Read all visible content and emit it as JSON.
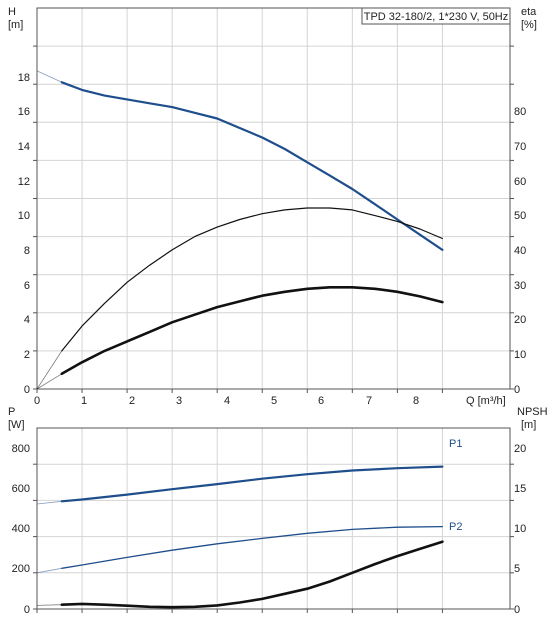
{
  "chart_data": [
    {
      "type": "line",
      "title": "TPD 32-180/2, 1*230 V, 50Hz",
      "xlabel": "Q [m³/h]",
      "ylabel_left": [
        "H",
        "[m]"
      ],
      "ylabel_right": [
        "eta",
        "[%]"
      ],
      "xlim": [
        0,
        10.5
      ],
      "ylim_left": [
        0,
        20
      ],
      "ylim_right": [
        0,
        100
      ],
      "x_ticks": [
        "0",
        "1",
        "2",
        "3",
        "4",
        "5",
        "6",
        "7",
        "8",
        "Q [m³/h]"
      ],
      "y_ticks_left": [
        "0",
        "2",
        "4",
        "6",
        "8",
        "10",
        "12",
        "14",
        "16",
        "18"
      ],
      "y_ticks_right": [
        "0",
        "10",
        "20",
        "30",
        "40",
        "50",
        "60",
        "70",
        "80"
      ],
      "grid": true,
      "series": [
        {
          "key": "H",
          "axis": "left",
          "color": "#1f4e8c",
          "extrapolated": [
            [
              0,
              16.7
            ],
            [
              0.55,
              16.1
            ]
          ],
          "points": [
            [
              0.55,
              16.1
            ],
            [
              1,
              15.7
            ],
            [
              1.5,
              15.4
            ],
            [
              2,
              15.2
            ],
            [
              2.5,
              15.0
            ],
            [
              3,
              14.8
            ],
            [
              3.5,
              14.5
            ],
            [
              4,
              14.2
            ],
            [
              4.5,
              13.7
            ],
            [
              5,
              13.2
            ],
            [
              5.5,
              12.6
            ],
            [
              6,
              11.9
            ],
            [
              6.5,
              11.2
            ],
            [
              7,
              10.5
            ],
            [
              7.5,
              9.7
            ],
            [
              8,
              8.9
            ],
            [
              8.5,
              8.1
            ],
            [
              9,
              7.3
            ]
          ]
        },
        {
          "key": "eta_thin",
          "axis": "right",
          "color": "#111111",
          "extrapolated": [
            [
              0,
              0
            ],
            [
              0.55,
              10
            ]
          ],
          "points": [
            [
              0.55,
              10
            ],
            [
              1,
              16.5
            ],
            [
              1.5,
              22.5
            ],
            [
              2,
              28
            ],
            [
              2.5,
              32.5
            ],
            [
              3,
              36.5
            ],
            [
              3.5,
              40
            ],
            [
              4,
              42.5
            ],
            [
              4.5,
              44.5
            ],
            [
              5,
              46
            ],
            [
              5.5,
              47
            ],
            [
              6,
              47.5
            ],
            [
              6.5,
              47.5
            ],
            [
              7,
              47
            ],
            [
              7.5,
              45.5
            ],
            [
              8,
              44
            ],
            [
              8.5,
              42
            ],
            [
              9,
              39.5
            ]
          ]
        },
        {
          "key": "eta_thick",
          "axis": "right",
          "color": "#111111",
          "extrapolated": [
            [
              0,
              0
            ],
            [
              0.55,
              4
            ]
          ],
          "points": [
            [
              0.55,
              4
            ],
            [
              1,
              7
            ],
            [
              1.5,
              10
            ],
            [
              2,
              12.5
            ],
            [
              2.5,
              15
            ],
            [
              3,
              17.5
            ],
            [
              3.5,
              19.5
            ],
            [
              4,
              21.5
            ],
            [
              4.5,
              23
            ],
            [
              5,
              24.5
            ],
            [
              5.5,
              25.5
            ],
            [
              6,
              26.3
            ],
            [
              6.5,
              26.7
            ],
            [
              7,
              26.7
            ],
            [
              7.5,
              26.3
            ],
            [
              8,
              25.5
            ],
            [
              8.5,
              24.3
            ],
            [
              9,
              22.8
            ]
          ]
        }
      ]
    },
    {
      "type": "line",
      "xlim": [
        0,
        10.5
      ],
      "ylabel_left": [
        "P",
        "[W]"
      ],
      "ylabel_right": [
        "NPSH",
        "[m]"
      ],
      "ylim_left": [
        0,
        1000
      ],
      "ylim_right": [
        0,
        25
      ],
      "y_ticks_left": [
        "0",
        "200",
        "400",
        "600",
        "800"
      ],
      "y_ticks_right": [
        "0",
        "5",
        "10",
        "15",
        "20"
      ],
      "grid": true,
      "series": [
        {
          "key": "P1",
          "name": "P1",
          "axis": "left",
          "color": "#1f4e8c",
          "extrapolated": [
            [
              0,
              580
            ],
            [
              0.55,
              595
            ]
          ],
          "points": [
            [
              0.55,
              595
            ],
            [
              1,
              605
            ],
            [
              2,
              632
            ],
            [
              3,
              662
            ],
            [
              4,
              690
            ],
            [
              5,
              720
            ],
            [
              6,
              745
            ],
            [
              7,
              765
            ],
            [
              8,
              778
            ],
            [
              9,
              787
            ]
          ]
        },
        {
          "key": "P2",
          "name": "P2",
          "axis": "left",
          "color": "#1f4e8c",
          "extrapolated": [
            [
              0,
              200
            ],
            [
              0.55,
              225
            ]
          ],
          "points": [
            [
              0.55,
              225
            ],
            [
              1,
              243
            ],
            [
              2,
              285
            ],
            [
              3,
              325
            ],
            [
              4,
              360
            ],
            [
              5,
              390
            ],
            [
              6,
              418
            ],
            [
              7,
              440
            ],
            [
              8,
              452
            ],
            [
              9,
              455
            ]
          ]
        },
        {
          "key": "NPSH",
          "axis": "right",
          "color": "#111111",
          "extrapolated": [
            [
              0,
              0.5
            ],
            [
              0.55,
              0.6
            ]
          ],
          "points": [
            [
              0.55,
              0.6
            ],
            [
              1,
              0.7
            ],
            [
              1.5,
              0.6
            ],
            [
              2,
              0.45
            ],
            [
              2.5,
              0.3
            ],
            [
              3,
              0.25
            ],
            [
              3.5,
              0.3
            ],
            [
              4,
              0.5
            ],
            [
              4.5,
              0.9
            ],
            [
              5,
              1.4
            ],
            [
              5.5,
              2.1
            ],
            [
              6,
              2.8
            ],
            [
              6.5,
              3.8
            ],
            [
              7,
              5.0
            ],
            [
              7.5,
              6.2
            ],
            [
              8,
              7.3
            ],
            [
              8.5,
              8.3
            ],
            [
              9,
              9.3
            ]
          ]
        }
      ]
    }
  ]
}
